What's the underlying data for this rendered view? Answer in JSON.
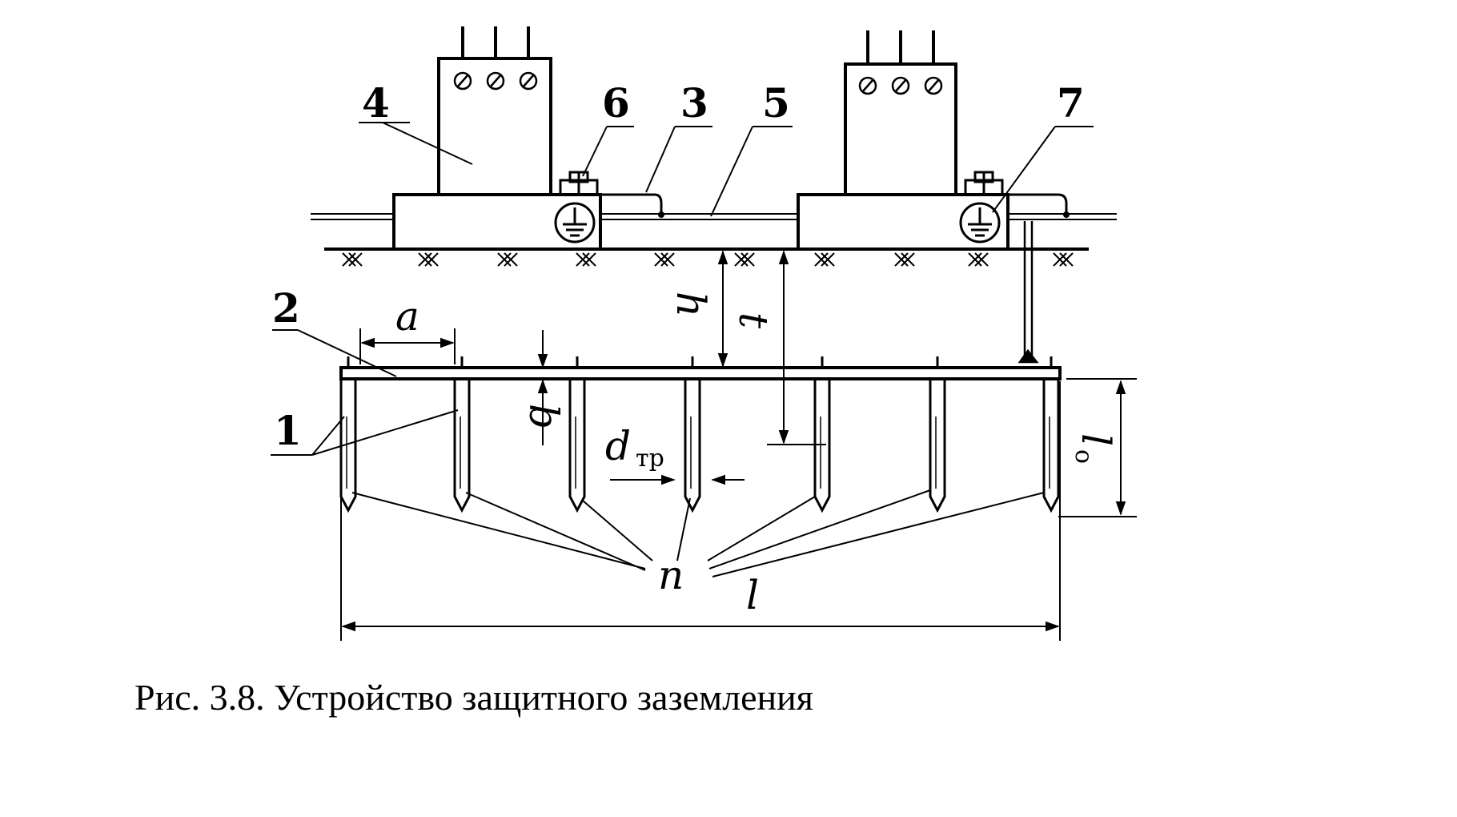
{
  "callouts": {
    "electrode": "1",
    "strip": "2",
    "conductor": "3",
    "equipment": "4",
    "main_bus": "5",
    "bolt_6": "6",
    "bolt_7": "7"
  },
  "dimensions": {
    "spacing": "a",
    "strip_width": "b",
    "depth_h": "h",
    "depth_t": "t",
    "diameter": "d",
    "diameter_sub": "тр",
    "count": "n",
    "length": "l",
    "electrode_length": "l",
    "electrode_length_sub": "о"
  },
  "caption": "Рис. 3.8. Устройство защитного заземления",
  "icons": {
    "ground_symbol": "ground-symbol-icon",
    "terminal": "terminal-icon",
    "soil_hatch": "soil-hatch-icon"
  }
}
